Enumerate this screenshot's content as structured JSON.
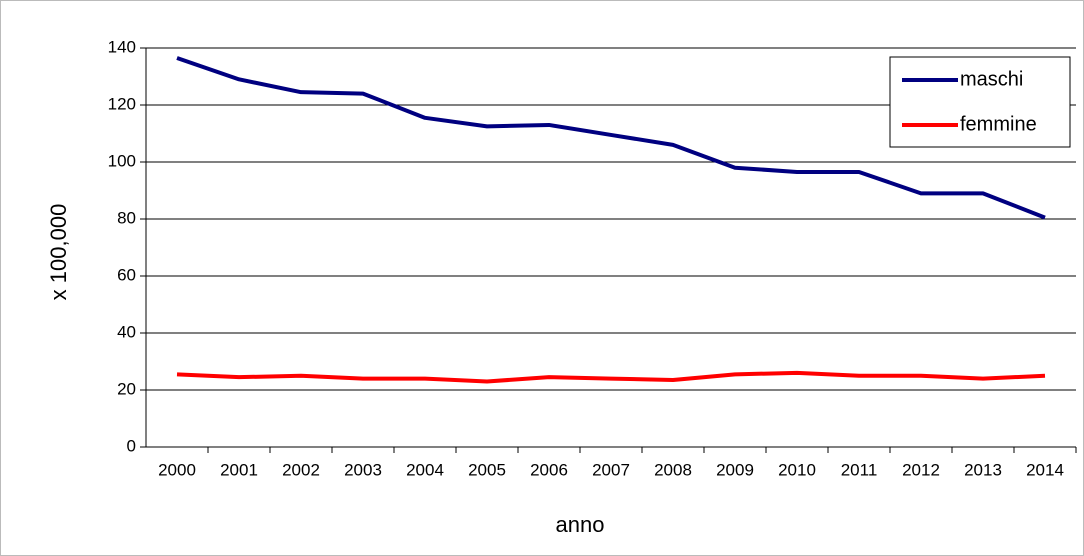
{
  "chart_data": {
    "type": "line",
    "x_label": "anno",
    "y_label": "x 100,000",
    "categories": [
      "2000",
      "2001",
      "2002",
      "2003",
      "2004",
      "2005",
      "2006",
      "2007",
      "2008",
      "2009",
      "2010",
      "2011",
      "2012",
      "2013",
      "2014"
    ],
    "series": [
      {
        "name": "maschi",
        "color": "#000080",
        "values": [
          136.5,
          129,
          124.5,
          124,
          115.5,
          112.5,
          113,
          109.5,
          106,
          98,
          96.5,
          96.5,
          89,
          89,
          80.5
        ]
      },
      {
        "name": "femmine",
        "color": "#ff0000",
        "values": [
          25.5,
          24.5,
          25,
          24,
          24,
          23,
          24.5,
          24,
          23.5,
          25.5,
          26,
          25,
          25,
          24,
          25
        ]
      }
    ],
    "ylim": [
      0,
      140
    ],
    "yticks": [
      0,
      20,
      40,
      60,
      80,
      100,
      120,
      140
    ],
    "grid": true,
    "legend": "top-right"
  }
}
